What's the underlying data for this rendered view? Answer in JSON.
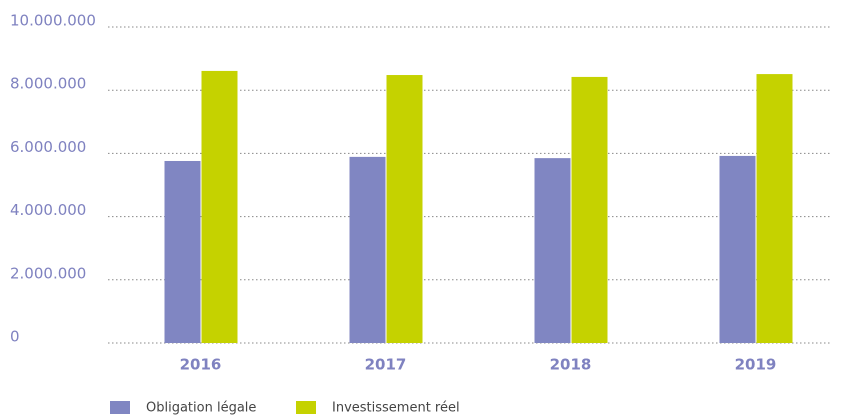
{
  "chart_data": {
    "type": "bar",
    "categories": [
      "2016",
      "2017",
      "2018",
      "2019"
    ],
    "series": [
      {
        "name": "Obligation légale",
        "color": "#8086c2",
        "values": [
          5760000,
          5890000,
          5850000,
          5920000
        ]
      },
      {
        "name": "Investissement réel",
        "color": "#c5d200",
        "values": [
          8610000,
          8480000,
          8420000,
          8510000
        ]
      }
    ],
    "ylim": [
      0,
      10000000
    ],
    "yticks": [
      0,
      {
        "value": 2000000,
        "label": "2.000.000"
      },
      {
        "value": 4000000,
        "label": "4.000.000"
      },
      {
        "value": 6000000,
        "label": "6.000.000"
      },
      {
        "value": 8000000,
        "label": "8.000.000"
      },
      {
        "value": 10000000,
        "label": "10.000.000"
      }
    ],
    "grid": true,
    "legend": "bottom"
  }
}
